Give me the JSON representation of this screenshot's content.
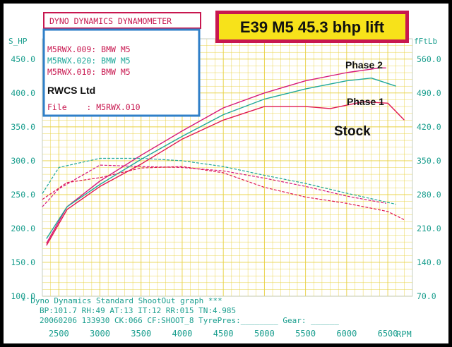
{
  "header": {
    "brand": "DYNO DYNAMICS DYNAMOMETER",
    "headline": "E39 M5 45.3 bhp lift"
  },
  "info_box": {
    "runs": [
      "M5RWX.009: BMW M5",
      "M5RWX.020: BMW M5",
      "M5RWX.010: BMW M5"
    ],
    "company": "RWCS Ltd",
    "file_line": "File    : M5RWX.010"
  },
  "footer": {
    "line1": "* Dyno Dynamics Standard ShootOut graph ***",
    "line2": "BP:101.7 RH:49 AT:13 IT:12  RR:015 TN:4.985",
    "line3": "20060206 133930 CK:066 CF:SHOOT_8  TyrePres:________ Gear: ______"
  },
  "colors": {
    "phase2": "#d6187a",
    "phase1": "#1fa89a",
    "stock": "#e01850",
    "grid": "#e8d040",
    "axis_text": "#1a9e8e",
    "frame": "#c8174f",
    "info_border": "#2f7fc8",
    "headline_bg": "#f7e21a"
  },
  "chart_data": {
    "type": "line",
    "xlabel": "RPM",
    "ylabel_left": "S_HP",
    "ylabel_right": "fFtLb",
    "x_ticks": [
      2500,
      3000,
      3500,
      4000,
      4500,
      5000,
      5500,
      6000,
      6500
    ],
    "xlim": [
      2300,
      6800
    ],
    "y_left_ticks": [
      100.0,
      150.0,
      200.0,
      250.0,
      300.0,
      350.0,
      400.0,
      450.0
    ],
    "y_left_lim": [
      100,
      480
    ],
    "y_right_ticks": [
      70.0,
      140.0,
      210.0,
      280.0,
      350.0,
      420.0,
      490.0,
      560.0
    ],
    "y_right_lim": [
      70,
      602
    ],
    "annotations": [
      "Phase 2",
      "Phase 1",
      "Stock"
    ],
    "series": [
      {
        "name": "Phase 2",
        "color_key": "phase2",
        "power": [
          [
            2350,
            178
          ],
          [
            2600,
            232
          ],
          [
            3000,
            270
          ],
          [
            3500,
            308
          ],
          [
            4000,
            344
          ],
          [
            4500,
            378
          ],
          [
            5000,
            400
          ],
          [
            5500,
            418
          ],
          [
            6000,
            430
          ],
          [
            6400,
            437
          ],
          [
            6480,
            437
          ]
        ],
        "torque": [
          [
            2300,
            255
          ],
          [
            2500,
            292
          ],
          [
            3000,
            341
          ],
          [
            3500,
            338
          ],
          [
            4000,
            336
          ],
          [
            4500,
            329
          ],
          [
            5000,
            314
          ],
          [
            5500,
            297
          ],
          [
            6000,
            277
          ],
          [
            6480,
            262
          ]
        ]
      },
      {
        "name": "Phase 1",
        "color_key": "phase1",
        "power": [
          [
            2350,
            185
          ],
          [
            2600,
            232
          ],
          [
            3000,
            265
          ],
          [
            3500,
            302
          ],
          [
            4000,
            336
          ],
          [
            4500,
            368
          ],
          [
            5000,
            391
          ],
          [
            5500,
            406
          ],
          [
            6000,
            418
          ],
          [
            6300,
            422
          ],
          [
            6600,
            410
          ]
        ],
        "torque": [
          [
            2300,
            282
          ],
          [
            2500,
            336
          ],
          [
            3000,
            355
          ],
          [
            3500,
            355
          ],
          [
            4000,
            350
          ],
          [
            4500,
            338
          ],
          [
            5000,
            320
          ],
          [
            5500,
            303
          ],
          [
            6000,
            283
          ],
          [
            6600,
            260
          ]
        ]
      },
      {
        "name": "Stock",
        "color_key": "stock",
        "power": [
          [
            2350,
            175
          ],
          [
            2600,
            228
          ],
          [
            3000,
            262
          ],
          [
            3500,
            295
          ],
          [
            4000,
            332
          ],
          [
            4500,
            360
          ],
          [
            5000,
            380
          ],
          [
            5500,
            380
          ],
          [
            5800,
            377
          ],
          [
            6200,
            387
          ],
          [
            6500,
            385
          ],
          [
            6700,
            360
          ]
        ],
        "torque": [
          [
            2300,
            270
          ],
          [
            2600,
            305
          ],
          [
            3000,
            315
          ],
          [
            3500,
            335
          ],
          [
            4000,
            338
          ],
          [
            4500,
            325
          ],
          [
            5000,
            295
          ],
          [
            5500,
            275
          ],
          [
            6000,
            262
          ],
          [
            6500,
            245
          ],
          [
            6700,
            228
          ]
        ]
      }
    ]
  }
}
